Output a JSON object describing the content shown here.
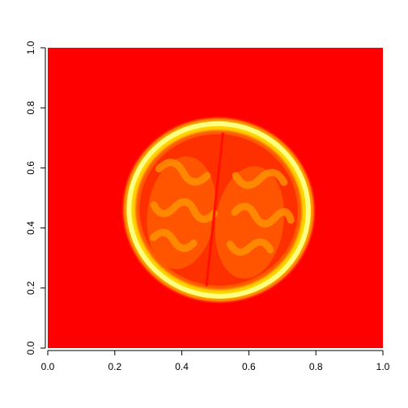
{
  "chart_data": {
    "type": "heatmap",
    "title": "",
    "xlabel": "",
    "ylabel": "",
    "xlim": [
      0,
      1
    ],
    "ylim": [
      0,
      1
    ],
    "x_ticks": [
      "0.0",
      "0.2",
      "0.4",
      "0.6",
      "0.8",
      "1.0"
    ],
    "y_ticks": [
      "0.0",
      "0.2",
      "0.4",
      "0.6",
      "0.8",
      "1.0"
    ],
    "colormap": [
      "#ff0000",
      "#ff5a00",
      "#ff9a00",
      "#ffd400",
      "#ffff80"
    ],
    "background_color": "#ff0000",
    "brain": {
      "center": [
        0.51,
        0.46
      ],
      "radius_x": 0.275,
      "radius_y": 0.295,
      "rotation_deg": 8
    },
    "grid": false,
    "legend": "none"
  }
}
